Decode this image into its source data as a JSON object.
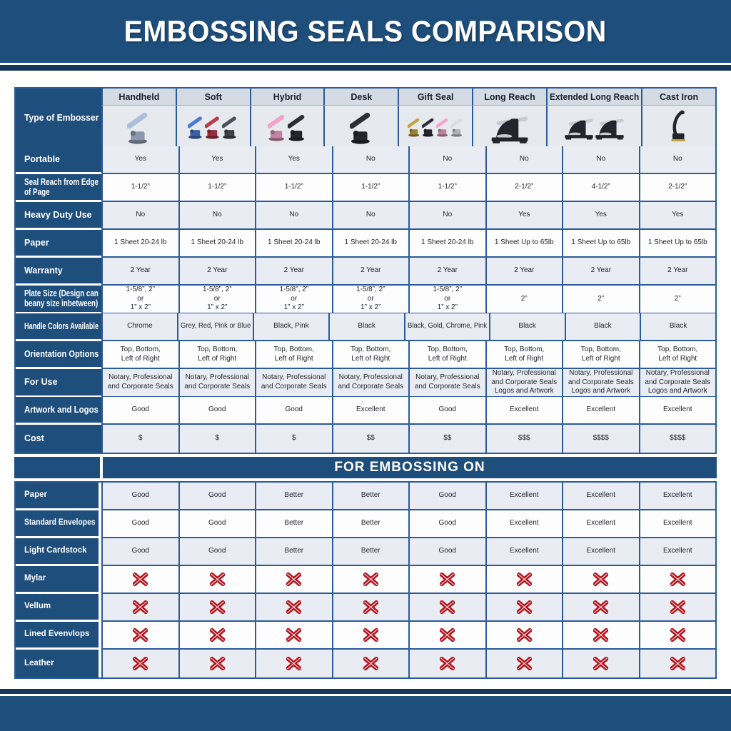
{
  "banner": {
    "title": "EMBOSSING SEALS COMPARISON"
  },
  "section": {
    "title": "FOR EMBOSSING ON"
  },
  "palette": {
    "banner_blue": "#1e4e7c",
    "stripe_navy": "#16365c",
    "border_blue": "#2b5b99",
    "row_light": "#e9edf3",
    "row_white": "#fdfdfe",
    "header_band": "#d4dbe3",
    "image_band": "#e6eaef",
    "x_red": "#b5121b"
  },
  "table": {
    "corner_label": "Type of Embosser",
    "columns": [
      {
        "label": "Handheld",
        "icon": "handheld-embosser",
        "shape": "handheld",
        "colors": [
          "#aebdd9"
        ]
      },
      {
        "label": "Soft",
        "icon": "soft-embosser",
        "shape": "handheld",
        "colors": [
          "#4a79d0",
          "#bc3a4e",
          "#4b515c"
        ]
      },
      {
        "label": "Hybrid",
        "icon": "hybrid-embosser",
        "shape": "handheld",
        "colors": [
          "#f2a3c9",
          "#2c2f36"
        ]
      },
      {
        "label": "Desk",
        "icon": "desk-embosser",
        "shape": "handheld",
        "colors": [
          "#2c2f36"
        ]
      },
      {
        "label": "Gift Seal",
        "icon": "gift-seal-embosser",
        "shape": "gift",
        "colors": [
          "#c2a13f",
          "#2c2f36",
          "#f2a3c9",
          "#d9dde6"
        ]
      },
      {
        "label": "Long Reach",
        "icon": "long-reach-embosser",
        "shape": "desk",
        "colors": [
          "#22252b"
        ]
      },
      {
        "label": "Extended Long Reach",
        "icon": "extended-long-reach-embosser",
        "shape": "desk",
        "colors": [
          "#22252b",
          "#22252b"
        ]
      },
      {
        "label": "Cast Iron",
        "icon": "cast-iron-embosser",
        "shape": "cast",
        "colors": [
          "#22252b"
        ]
      }
    ],
    "rows": [
      {
        "label": "Portable",
        "values": [
          "Yes",
          "Yes",
          "Yes",
          "No",
          "No",
          "No",
          "No",
          "No"
        ]
      },
      {
        "label": "Seal Reach from Edge\nof Page",
        "values": [
          "1-1/2”",
          "1-1/2”",
          "1-1/2”",
          "1-1/2”",
          "1-1/2”",
          "2-1/2”",
          "4-1/2”",
          "2-1/2”"
        ]
      },
      {
        "label": "Heavy Duty Use",
        "values": [
          "No",
          "No",
          "No",
          "No",
          "No",
          "Yes",
          "Yes",
          "Yes"
        ]
      },
      {
        "label": "Paper",
        "values": [
          "1 Sheet 20-24 lb",
          "1 Sheet 20-24 lb",
          "1 Sheet 20-24 lb",
          "1 Sheet 20-24 lb",
          "1 Sheet 20-24 lb",
          "1 Sheet Up to 65lb",
          "1 Sheet Up to 65lb",
          "1 Sheet Up to 65lb"
        ]
      },
      {
        "label": "Warranty",
        "values": [
          "2 Year",
          "2 Year",
          "2 Year",
          "2 Year",
          "2 Year",
          "2 Year",
          "2 Year",
          "2 Year"
        ]
      },
      {
        "label": "Plate Size (Design can\nbeany size inbetween)",
        "values": [
          "1-5/8”, 2”\nor\n1” x 2”",
          "1-5/8”, 2”\nor\n1” x 2”",
          "1-5/8”, 2”\nor\n1” x 2”",
          "1-5/8”, 2”\nor\n1” x 2”",
          "1-5/8”, 2”\nor\n1” x 2”",
          "2”",
          "2”",
          "2”"
        ]
      },
      {
        "label": "Handle Colors Available",
        "values": [
          "Chrome",
          "Grey, Red, Pink or Blue",
          "Black, Pink",
          "Black",
          "Black, Gold, Chrome, Pink",
          "Black",
          "Black",
          "Black"
        ]
      },
      {
        "label": "Orientation Options",
        "values": [
          "Top, Bottom,\nLeft of Right",
          "Top, Bottom,\nLeft of Right",
          "Top, Bottom,\nLeft of Right",
          "Top, Bottom,\nLeft of Right",
          "Top, Bottom,\nLeft of Right",
          "Top, Bottom,\nLeft of Right",
          "Top, Bottom,\nLeft of Right",
          "Top, Bottom,\nLeft of Right"
        ]
      },
      {
        "label": "For Use",
        "values": [
          "Notary, Professional\nand Corporate Seals",
          "Notary, Professional\nand Corporate Seals",
          "Notary, Professional\nand Corporate Seals",
          "Notary, Professional\nand Corporate Seals",
          "Notary, Professional\nand Corporate Seals",
          "Notary, Professional\nand Corporate Seals\nLogos and Artwork",
          "Notary, Professional\nand Corporate Seals\nLogos and Artwork",
          "Notary, Professional\nand Corporate Seals\nLogos and Artwork"
        ]
      },
      {
        "label": "Artwork and Logos",
        "values": [
          "Good",
          "Good",
          "Good",
          "Excellent",
          "Good",
          "Excellent",
          "Excellent",
          "Excellent"
        ]
      },
      {
        "label": "Cost",
        "values": [
          "$",
          "$",
          "$",
          "$$",
          "$$",
          "$$$",
          "$$$$",
          "$$$$"
        ]
      }
    ],
    "embossing_rows": [
      {
        "label": "Paper",
        "values": [
          "Good",
          "Good",
          "Better",
          "Better",
          "Good",
          "Excellent",
          "Excellent",
          "Excellent"
        ]
      },
      {
        "label": "Standard Envelopes",
        "values": [
          "Good",
          "Good",
          "Better",
          "Better",
          "Good",
          "Excellent",
          "Excellent",
          "Excellent"
        ]
      },
      {
        "label": "Light Cardstock",
        "values": [
          "Good",
          "Good",
          "Better",
          "Better",
          "Good",
          "Excellent",
          "Excellent",
          "Excellent"
        ]
      },
      {
        "label": "Mylar",
        "values": [
          "x",
          "x",
          "x",
          "x",
          "x",
          "x",
          "x",
          "x"
        ]
      },
      {
        "label": "Vellum",
        "values": [
          "x",
          "x",
          "x",
          "x",
          "x",
          "x",
          "x",
          "x"
        ]
      },
      {
        "label": "Lined Evenvlops",
        "values": [
          "x",
          "x",
          "x",
          "x",
          "x",
          "x",
          "x",
          "x"
        ]
      },
      {
        "label": "Leather",
        "values": [
          "x",
          "x",
          "x",
          "x",
          "x",
          "x",
          "x",
          "x"
        ]
      }
    ]
  }
}
